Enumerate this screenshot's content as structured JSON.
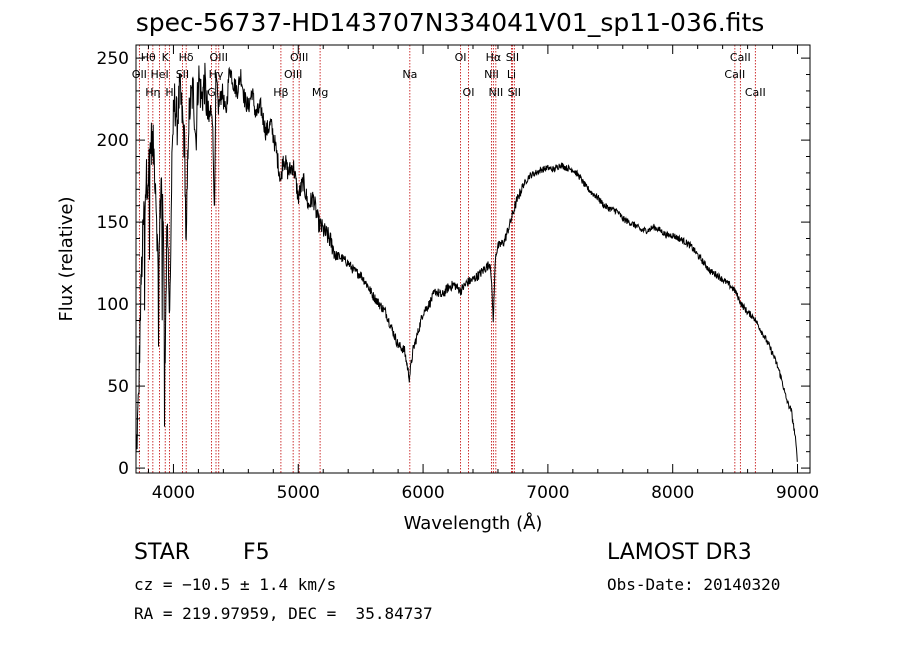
{
  "title": "spec-56737-HD143707N334041V01_sp11-036.fits",
  "footer": {
    "object_class": "STAR",
    "subclass": "F5",
    "survey": "LAMOST DR3",
    "cz": "cz = −10.5 ± 1.4 km/s",
    "obs_date": "Obs-Date: 20140320",
    "coords": "RA = 219.97959, DEC =  35.84737"
  },
  "chart_data": {
    "type": "line",
    "xlabel": "Wavelength (Å)",
    "ylabel": "Flux (relative)",
    "xlim": [
      3700,
      9100
    ],
    "ylim": [
      -3,
      258
    ],
    "xticks": [
      4000,
      5000,
      6000,
      7000,
      8000,
      9000
    ],
    "yticks": [
      0,
      50,
      100,
      150,
      200,
      250
    ],
    "grid": false,
    "series": [
      {
        "x": [
          3700,
          3720,
          3740,
          3760,
          3780,
          3800,
          3820,
          3840,
          3860,
          3880,
          3900,
          3920,
          3935,
          3950,
          3970,
          3990,
          4010,
          4030,
          4050,
          4070,
          4090,
          4102,
          4120,
          4140,
          4160,
          4180,
          4200,
          4225,
          4250,
          4280,
          4310,
          4330,
          4340,
          4360,
          4390,
          4420,
          4450,
          4480,
          4510,
          4540,
          4570,
          4600,
          4630,
          4660,
          4700,
          4740,
          4780,
          4820,
          4861,
          4880,
          4920,
          4960,
          5000,
          5040,
          5080,
          5120,
          5160,
          5200,
          5250,
          5300,
          5350,
          5400,
          5450,
          5500,
          5550,
          5600,
          5650,
          5700,
          5750,
          5800,
          5850,
          5890,
          5920,
          5950,
          6000,
          6050,
          6100,
          6150,
          6200,
          6250,
          6300,
          6350,
          6400,
          6450,
          6500,
          6540,
          6563,
          6580,
          6600,
          6650,
          6700,
          6750,
          6800,
          6850,
          6900,
          6950,
          7000,
          7050,
          7100,
          7150,
          7200,
          7250,
          7300,
          7350,
          7400,
          7450,
          7500,
          7550,
          7600,
          7650,
          7700,
          7750,
          7800,
          7850,
          7900,
          7950,
          8000,
          8050,
          8100,
          8150,
          8200,
          8250,
          8300,
          8350,
          8400,
          8450,
          8500,
          8550,
          8600,
          8650,
          8700,
          8750,
          8800,
          8850,
          8880,
          8900,
          8920,
          8950,
          8980,
          9000
        ],
        "y": [
          5,
          40,
          110,
          150,
          175,
          180,
          200,
          195,
          170,
          110,
          180,
          140,
          70,
          160,
          90,
          200,
          225,
          210,
          230,
          215,
          195,
          130,
          210,
          225,
          230,
          200,
          240,
          225,
          235,
          210,
          220,
          155,
          240,
          220,
          230,
          215,
          245,
          235,
          230,
          240,
          225,
          220,
          230,
          215,
          220,
          205,
          210,
          195,
          175,
          190,
          180,
          185,
          165,
          175,
          160,
          165,
          150,
          145,
          140,
          130,
          128,
          125,
          120,
          118,
          112,
          105,
          100,
          95,
          85,
          75,
          72,
          55,
          72,
          80,
          95,
          100,
          108,
          105,
          110,
          112,
          108,
          113,
          115,
          118,
          122,
          125,
          90,
          130,
          135,
          138,
          150,
          163,
          172,
          178,
          180,
          182,
          183,
          182,
          185,
          183,
          182,
          178,
          172,
          168,
          165,
          160,
          158,
          157,
          152,
          150,
          148,
          145,
          145,
          147,
          145,
          142,
          142,
          140,
          138,
          135,
          130,
          125,
          120,
          118,
          115,
          112,
          108,
          100,
          95,
          92,
          85,
          78,
          70,
          60,
          52,
          45,
          40,
          35,
          20,
          4
        ]
      }
    ],
    "lines": [
      {
        "name": "OII",
        "wavelength": 3727,
        "row": 2
      },
      {
        "name": "Hθ",
        "wavelength": 3798,
        "row": 1
      },
      {
        "name": "Hη",
        "wavelength": 3835,
        "row": 3
      },
      {
        "name": "HeI",
        "wavelength": 3889,
        "row": 2
      },
      {
        "name": "K",
        "wavelength": 3934,
        "row": 1
      },
      {
        "name": "H",
        "wavelength": 3969,
        "row": 3
      },
      {
        "name": "SII",
        "wavelength": 4072,
        "row": 2
      },
      {
        "name": "Hδ",
        "wavelength": 4102,
        "row": 1
      },
      {
        "name": "G",
        "wavelength": 4305,
        "row": 3
      },
      {
        "name": "Hγ",
        "wavelength": 4341,
        "row": 2
      },
      {
        "name": "OIII",
        "wavelength": 4363,
        "row": 1
      },
      {
        "name": "Hβ",
        "wavelength": 4861,
        "row": 3
      },
      {
        "name": "OIII",
        "wavelength": 4959,
        "row": 2
      },
      {
        "name": "OIII",
        "wavelength": 5007,
        "row": 1
      },
      {
        "name": "Mg",
        "wavelength": 5175,
        "row": 3
      },
      {
        "name": "Na",
        "wavelength": 5894,
        "row": 2
      },
      {
        "name": "OI",
        "wavelength": 6300,
        "row": 1
      },
      {
        "name": "OI",
        "wavelength": 6364,
        "row": 3
      },
      {
        "name": "NII",
        "wavelength": 6548,
        "row": 2
      },
      {
        "name": "Hα",
        "wavelength": 6563,
        "row": 1
      },
      {
        "name": "NII",
        "wavelength": 6583,
        "row": 3
      },
      {
        "name": "SII",
        "wavelength": 6716,
        "row": 1
      },
      {
        "name": "Li",
        "wavelength": 6708,
        "row": 2
      },
      {
        "name": "SII",
        "wavelength": 6731,
        "row": 3
      },
      {
        "name": "CaII",
        "wavelength": 8498,
        "row": 2
      },
      {
        "name": "CaII",
        "wavelength": 8542,
        "row": 1
      },
      {
        "name": "CaII",
        "wavelength": 8662,
        "row": 3
      }
    ]
  }
}
